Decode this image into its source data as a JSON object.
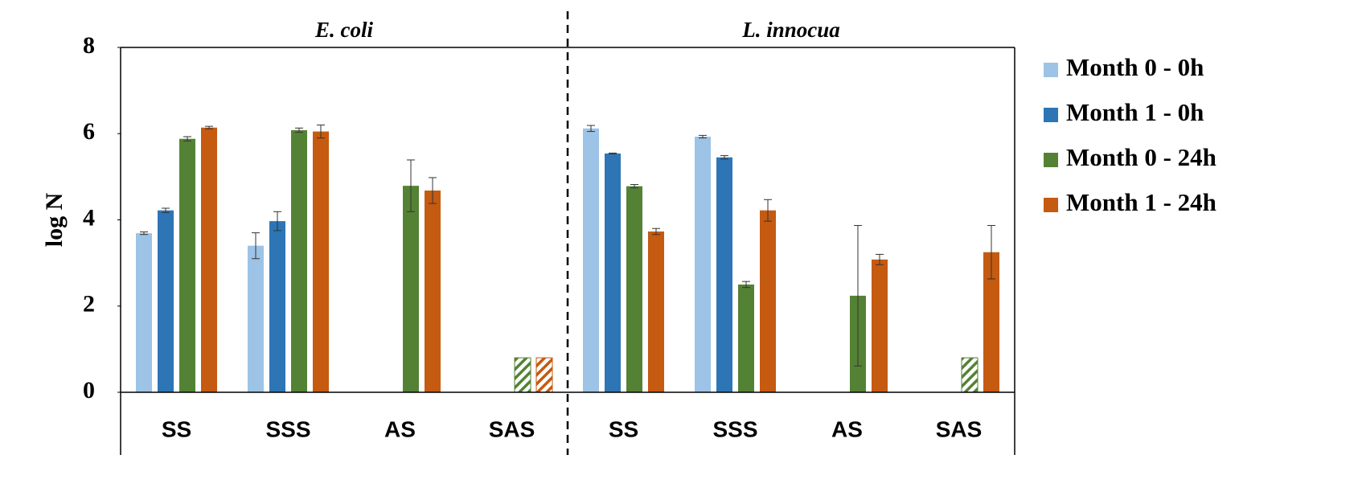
{
  "chart_data": {
    "type": "bar",
    "ylabel": "log N",
    "ylim": [
      0,
      8
    ],
    "yticks": [
      0,
      2,
      4,
      6,
      8
    ],
    "series": [
      {
        "name": "Month 0 - 0h",
        "color": "#9dc3e6"
      },
      {
        "name": "Month 1 - 0h",
        "color": "#2e75b6"
      },
      {
        "name": "Month 0 - 24h",
        "color": "#548235"
      },
      {
        "name": "Month 1 - 24h",
        "color": "#c55a11"
      }
    ],
    "panels": [
      {
        "title": "E. coli",
        "categories": [
          "SS",
          "SSS",
          "AS",
          "SAS"
        ],
        "series": [
          {
            "values": [
              3.69,
              3.4,
              null,
              null
            ],
            "errors": [
              0.03,
              0.3,
              null,
              null
            ],
            "hatched": [
              false,
              false,
              false,
              false
            ]
          },
          {
            "values": [
              4.22,
              3.97,
              null,
              null
            ],
            "errors": [
              0.05,
              0.22,
              null,
              null
            ],
            "hatched": [
              false,
              false,
              false,
              false
            ]
          },
          {
            "values": [
              5.88,
              6.08,
              4.79,
              0.8
            ],
            "errors": [
              0.05,
              0.05,
              0.6,
              null
            ],
            "hatched": [
              false,
              false,
              false,
              true
            ]
          },
          {
            "values": [
              6.14,
              6.05,
              4.68,
              0.8
            ],
            "errors": [
              0.03,
              0.15,
              0.3,
              null
            ],
            "hatched": [
              false,
              false,
              false,
              true
            ]
          }
        ]
      },
      {
        "title": "L. innocua",
        "categories": [
          "SS",
          "SSS",
          "AS",
          "SAS"
        ],
        "series": [
          {
            "values": [
              6.12,
              5.93,
              null,
              null
            ],
            "errors": [
              0.07,
              0.03,
              null,
              null
            ],
            "hatched": [
              false,
              false,
              false,
              false
            ]
          },
          {
            "values": [
              5.54,
              5.45,
              null,
              null
            ],
            "errors": [
              0.01,
              0.04,
              null,
              null
            ],
            "hatched": [
              false,
              false,
              false,
              false
            ]
          },
          {
            "values": [
              4.78,
              2.5,
              2.24,
              0.8
            ],
            "errors": [
              0.04,
              0.07,
              1.63,
              null
            ],
            "hatched": [
              false,
              false,
              false,
              true
            ]
          },
          {
            "values": [
              3.73,
              4.22,
              3.08,
              3.25
            ],
            "errors": [
              0.07,
              0.25,
              0.12,
              0.62
            ],
            "hatched": [
              false,
              false,
              false,
              false
            ]
          }
        ]
      }
    ]
  }
}
